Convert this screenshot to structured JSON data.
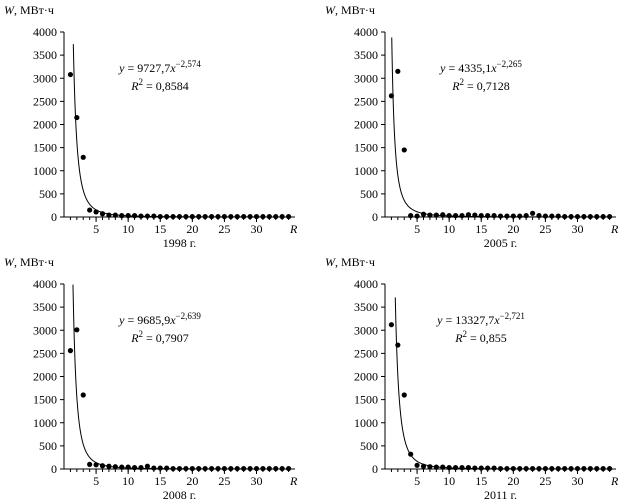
{
  "chart_data": [
    {
      "type": "scatter",
      "ylabel": "W",
      "ylabel_unit": ", МВт·ч",
      "xlabel": "R",
      "year_label": "1998 г.",
      "xticks": [
        "5",
        "10",
        "15",
        "20",
        "25",
        "30"
      ],
      "ylim": [
        0,
        4000
      ],
      "yticks": [
        "0",
        "500",
        "1000",
        "1500",
        "2000",
        "2500",
        "3000",
        "3500",
        "4000"
      ],
      "equation": {
        "y": "y",
        "rhs": " = 9727,7",
        "x": "x",
        "exp": "−2,574",
        "r2_label": "R",
        "r2_value": " = 0,8584"
      },
      "fit": {
        "a": 9727.7,
        "b": -2.574
      },
      "x": [
        1,
        2,
        3,
        4,
        5,
        6,
        7,
        8,
        9,
        10,
        11,
        12,
        13,
        14,
        15,
        16,
        17,
        18,
        19,
        20,
        21,
        22,
        23,
        24,
        25,
        26,
        27,
        28,
        29,
        30,
        31,
        32,
        33,
        34,
        35
      ],
      "y": [
        3080,
        2150,
        1290,
        150,
        110,
        70,
        40,
        40,
        30,
        30,
        30,
        20,
        20,
        20,
        10,
        10,
        10,
        10,
        10,
        10,
        10,
        10,
        10,
        10,
        10,
        10,
        10,
        10,
        10,
        10,
        10,
        10,
        10,
        10,
        10
      ]
    },
    {
      "type": "scatter",
      "ylabel": "W",
      "ylabel_unit": ", МВт·ч",
      "xlabel": "R",
      "year_label": "2005 г.",
      "xticks": [
        "5",
        "10",
        "15",
        "20",
        "25",
        "30"
      ],
      "ylim": [
        0,
        4000
      ],
      "yticks": [
        "0",
        "500",
        "1000",
        "1500",
        "2000",
        "2500",
        "3000",
        "3500",
        "4000"
      ],
      "equation": {
        "y": "y",
        "rhs": " = 4335,1",
        "x": "x",
        "exp": "−2,265",
        "r2_label": "R",
        "r2_value": " = 0,7128"
      },
      "fit": {
        "a": 4335.1,
        "b": -2.265
      },
      "x": [
        1,
        2,
        3,
        4,
        5,
        6,
        7,
        8,
        9,
        10,
        11,
        12,
        13,
        14,
        15,
        16,
        17,
        18,
        19,
        20,
        21,
        22,
        23,
        24,
        25,
        26,
        27,
        28,
        29,
        30,
        31,
        32,
        33,
        34,
        35
      ],
      "y": [
        2620,
        3150,
        1450,
        30,
        20,
        60,
        40,
        40,
        50,
        30,
        30,
        30,
        50,
        40,
        30,
        30,
        30,
        20,
        20,
        20,
        20,
        30,
        80,
        30,
        20,
        20,
        20,
        10,
        10,
        10,
        10,
        10,
        10,
        10,
        10
      ]
    },
    {
      "type": "scatter",
      "ylabel": "W",
      "ylabel_unit": ", МВт·ч",
      "xlabel": "R",
      "year_label": "2008 г.",
      "xticks": [
        "5",
        "10",
        "15",
        "20",
        "25",
        "30"
      ],
      "ylim": [
        0,
        4000
      ],
      "yticks": [
        "0",
        "500",
        "1000",
        "1500",
        "2000",
        "2500",
        "3000",
        "3500",
        "4000"
      ],
      "equation": {
        "y": "y",
        "rhs": " = 9685,9",
        "x": "x",
        "exp": "−2,639",
        "r2_label": "R",
        "r2_value": " = 0,7907"
      },
      "fit": {
        "a": 9685.9,
        "b": -2.639
      },
      "x": [
        1,
        2,
        3,
        4,
        5,
        6,
        7,
        8,
        9,
        10,
        11,
        12,
        13,
        14,
        15,
        16,
        17,
        18,
        19,
        20,
        21,
        22,
        23,
        24,
        25,
        26,
        27,
        28,
        29,
        30,
        31,
        32,
        33,
        34,
        35
      ],
      "y": [
        2560,
        3010,
        1600,
        100,
        90,
        70,
        60,
        50,
        40,
        40,
        30,
        30,
        60,
        20,
        20,
        20,
        10,
        10,
        10,
        10,
        10,
        10,
        10,
        10,
        10,
        10,
        10,
        10,
        10,
        10,
        10,
        10,
        10,
        10,
        10
      ]
    },
    {
      "type": "scatter",
      "ylabel": "W",
      "ylabel_unit": ", МВт·ч",
      "xlabel": "R",
      "year_label": "2011 г.",
      "xticks": [
        "5",
        "10",
        "15",
        "20",
        "25",
        "30"
      ],
      "ylim": [
        0,
        4000
      ],
      "yticks": [
        "0",
        "500",
        "1000",
        "1500",
        "2000",
        "2500",
        "3000",
        "3500",
        "4000"
      ],
      "equation": {
        "y": "y",
        "rhs": " = 13327,7",
        "x": "x",
        "exp": "−2,721",
        "r2_label": "R",
        "r2_value": " = 0,855"
      },
      "fit": {
        "a": 13327.7,
        "b": -2.721
      },
      "x": [
        1,
        2,
        3,
        4,
        5,
        6,
        7,
        8,
        9,
        10,
        11,
        12,
        13,
        14,
        15,
        16,
        17,
        18,
        19,
        20,
        21,
        22,
        23,
        24,
        25,
        26,
        27,
        28,
        29,
        30,
        31,
        32,
        33,
        34,
        35
      ],
      "y": [
        3120,
        2680,
        1600,
        320,
        80,
        60,
        50,
        40,
        40,
        30,
        30,
        30,
        30,
        20,
        20,
        20,
        20,
        10,
        10,
        10,
        10,
        10,
        10,
        10,
        10,
        10,
        10,
        10,
        10,
        10,
        10,
        10,
        10,
        10,
        10
      ]
    }
  ]
}
